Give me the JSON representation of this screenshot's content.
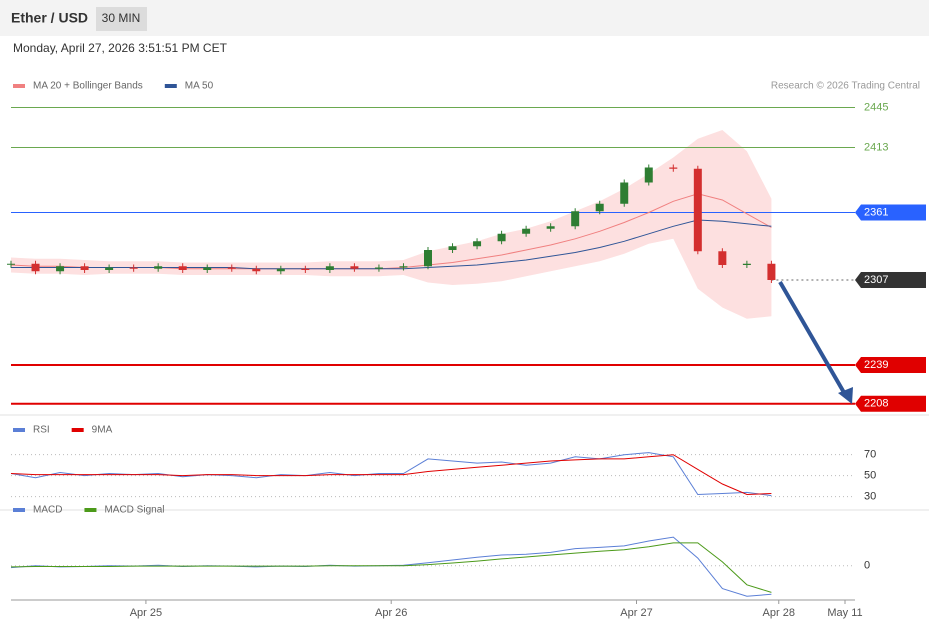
{
  "header": {
    "title": "Ether / USD",
    "interval": "30 MIN",
    "timestamp": "Monday, April 27, 2026 3:51:51 PM CET"
  },
  "chart_data": [
    {
      "type": "candlestick",
      "copyright": "Research © 2026 Trading Central",
      "up_color": "#2e7d32",
      "down_color": "#d32f2f",
      "close": [
        2320,
        2314,
        2318,
        2315,
        2317,
        2316,
        2318,
        2315,
        2317,
        2316,
        2314,
        2316,
        2315,
        2318,
        2316,
        2317,
        2318,
        2331,
        2334,
        2338,
        2344,
        2348,
        2350,
        2362,
        2368,
        2385,
        2397,
        2396,
        2330,
        2319,
        2320,
        2307
      ],
      "series": [
        {
          "name": "MA 20 + Bollinger Bands",
          "color": "#f08080",
          "band_color": "#fde0e0",
          "values": [
            2319,
            2318,
            2318,
            2317,
            2317,
            2317,
            2317,
            2316,
            2316,
            2316,
            2316,
            2316,
            2316,
            2316,
            2316,
            2316,
            2317,
            2319,
            2321,
            2324,
            2327,
            2331,
            2335,
            2340,
            2346,
            2353,
            2361,
            2370,
            2376,
            2371,
            2360,
            2349
          ],
          "upper": [
            2325,
            2324,
            2324,
            2323,
            2322,
            2322,
            2322,
            2321,
            2321,
            2321,
            2321,
            2321,
            2321,
            2322,
            2322,
            2322,
            2323,
            2330,
            2334,
            2338,
            2344,
            2348,
            2354,
            2362,
            2370,
            2380,
            2392,
            2405,
            2420,
            2427,
            2410,
            2372
          ],
          "lower": [
            2313,
            2312,
            2312,
            2311,
            2312,
            2312,
            2312,
            2311,
            2311,
            2311,
            2311,
            2311,
            2311,
            2310,
            2310,
            2310,
            2311,
            2305,
            2303,
            2304,
            2306,
            2310,
            2314,
            2318,
            2322,
            2328,
            2336,
            2340,
            2300,
            2285,
            2276,
            2278
          ]
        },
        {
          "name": "MA 50",
          "color": "#2f5597",
          "values": [
            2317,
            2317,
            2317,
            2317,
            2317,
            2317,
            2317,
            2317,
            2317,
            2317,
            2316,
            2316,
            2316,
            2316,
            2316,
            2316,
            2316,
            2317,
            2318,
            2319,
            2321,
            2323,
            2326,
            2329,
            2333,
            2338,
            2344,
            2350,
            2355,
            2354,
            2352,
            2350
          ]
        }
      ],
      "levels": [
        {
          "value": 2445,
          "color": "#6aa84f",
          "box": false
        },
        {
          "value": 2413,
          "color": "#6aa84f",
          "box": false
        },
        {
          "value": 2361,
          "color": "#2962ff",
          "box": true
        },
        {
          "value": 2307,
          "color": "#333333",
          "box": true,
          "dashed": true
        },
        {
          "value": 2239,
          "color": "#e00000",
          "box": true
        },
        {
          "value": 2208,
          "color": "#e00000",
          "box": true
        }
      ],
      "ylim": [
        2199,
        2455
      ],
      "xlim": [
        0,
        34
      ]
    },
    {
      "type": "line",
      "series": [
        {
          "name": "RSI",
          "color": "#5b7fd6",
          "values": [
            52,
            48,
            53,
            50,
            52,
            51,
            52,
            49,
            51,
            50,
            48,
            51,
            50,
            53,
            50,
            52,
            52,
            66,
            64,
            62,
            63,
            60,
            62,
            68,
            66,
            70,
            72,
            68,
            32,
            33,
            34,
            31
          ]
        },
        {
          "name": "9MA",
          "color": "#e00000",
          "values": [
            52,
            51,
            51,
            51,
            51,
            51,
            51,
            50,
            51,
            51,
            50,
            50,
            50,
            51,
            51,
            51,
            51,
            54,
            56,
            58,
            60,
            62,
            64,
            65,
            66,
            66,
            68,
            70,
            56,
            42,
            32,
            33
          ]
        }
      ],
      "ylim": [
        22,
        84
      ],
      "yticks": [
        30,
        50,
        70
      ],
      "xlim": [
        0,
        34
      ]
    },
    {
      "type": "line",
      "series": [
        {
          "name": "MACD",
          "color": "#5b7fd6",
          "values": [
            -0.5,
            0,
            -0.3,
            -0.2,
            0,
            -0.1,
            0.1,
            -0.2,
            0,
            -0.1,
            -0.3,
            -0.1,
            -0.2,
            0.1,
            -0.1,
            0,
            0.1,
            0.8,
            1.5,
            2.2,
            2.8,
            3,
            3.5,
            4.5,
            4.8,
            5.2,
            6.5,
            7.5,
            2,
            -6,
            -8,
            -7.5
          ]
        },
        {
          "name": "MACD Signal",
          "color": "#4c9a1a",
          "values": [
            -0.3,
            -0.2,
            -0.2,
            -0.2,
            -0.2,
            -0.1,
            -0.1,
            -0.1,
            -0.1,
            -0.1,
            -0.1,
            -0.1,
            -0.1,
            0,
            0,
            0,
            0,
            0.3,
            0.7,
            1.2,
            1.8,
            2.3,
            2.8,
            3.3,
            3.8,
            4.2,
            5,
            6,
            6,
            1,
            -5,
            -7
          ]
        }
      ],
      "ylim": [
        -9,
        12
      ],
      "yticks": [
        0
      ],
      "xlim": [
        0,
        34
      ],
      "xticks": [
        {
          "value": 5.5,
          "label": "Apr 25"
        },
        {
          "value": 15.5,
          "label": "Apr 26"
        },
        {
          "value": 25.5,
          "label": "Apr 27"
        },
        {
          "value": 31.3,
          "label": "Apr 28"
        },
        {
          "value": 34,
          "label": "May 11"
        }
      ]
    }
  ]
}
